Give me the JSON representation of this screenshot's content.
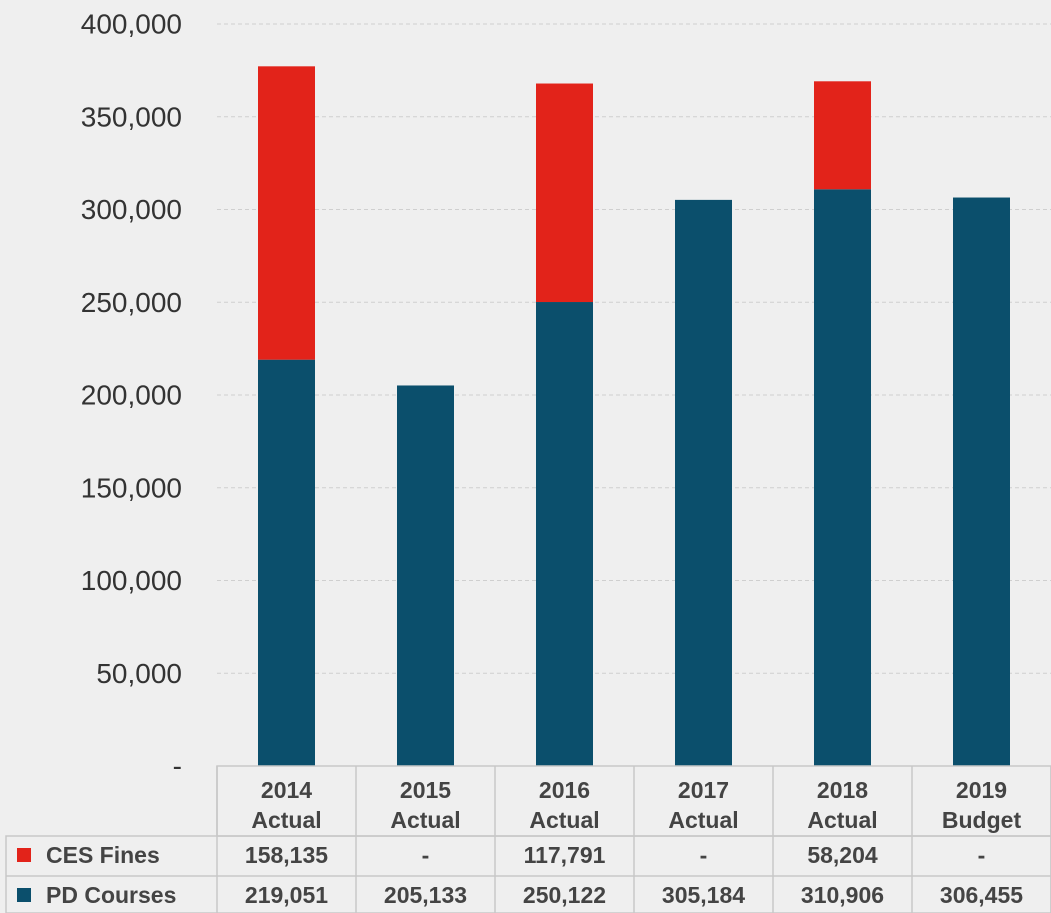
{
  "chart_data": {
    "type": "bar",
    "stacked": true,
    "categories": [
      "2014 Actual",
      "2015 Actual",
      "2016 Actual",
      "2017 Actual",
      "2018 Actual",
      "2019 Budget"
    ],
    "category_lines": [
      [
        "2014",
        "Actual"
      ],
      [
        "2015",
        "Actual"
      ],
      [
        "2016",
        "Actual"
      ],
      [
        "2017",
        "Actual"
      ],
      [
        "2018",
        "Actual"
      ],
      [
        "2019",
        "Budget"
      ]
    ],
    "series": [
      {
        "name": "PD Courses",
        "color": "#0b4f6c",
        "values": [
          219051,
          205133,
          250122,
          305184,
          310906,
          306455
        ],
        "labels": [
          "219,051",
          "205,133",
          "250,122",
          "305,184",
          "310,906",
          "306,455"
        ]
      },
      {
        "name": "CES Fines",
        "color": "#e2231a",
        "values": [
          158135,
          0,
          117791,
          0,
          58204,
          0
        ],
        "labels": [
          "158,135",
          "-",
          "117,791",
          "-",
          "58,204",
          "-"
        ]
      }
    ],
    "ylim": [
      0,
      400000
    ],
    "yticks": [
      0,
      50000,
      100000,
      150000,
      200000,
      250000,
      300000,
      350000,
      400000
    ],
    "ytick_labels": [
      "-",
      "50,000",
      "100,000",
      "150,000",
      "200,000",
      "250,000",
      "300,000",
      "350,000",
      "400,000"
    ],
    "grid": true,
    "legend": "data-table",
    "xlabel": "",
    "ylabel": ""
  }
}
